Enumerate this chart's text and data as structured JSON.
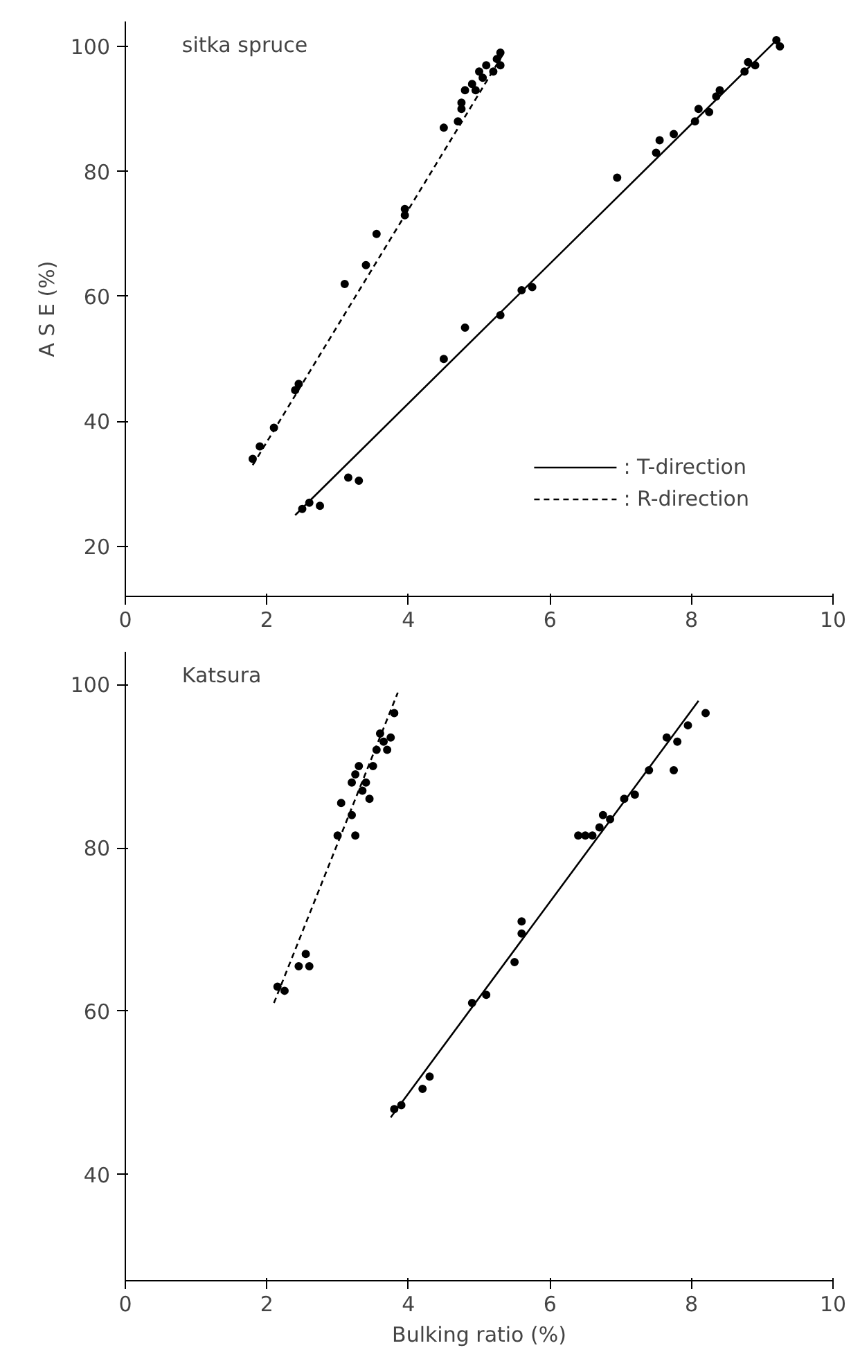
{
  "chart_data": [
    {
      "type": "scatter",
      "title": "sitka spruce",
      "ylabel": "A S E (%)",
      "xlim": [
        0,
        10
      ],
      "ylim": [
        12,
        104
      ],
      "xticks": [
        0,
        2,
        4,
        6,
        8,
        10
      ],
      "yticks": [
        20,
        40,
        60,
        80,
        100
      ],
      "grid": false,
      "legend": "bottom right",
      "marker": "circle",
      "series": [
        {
          "color": "#000000",
          "x": [
            1.8,
            1.9,
            2.1,
            2.4,
            2.45,
            3.1,
            3.4,
            3.55,
            3.95,
            3.95,
            4.5,
            4.7,
            4.75,
            4.75,
            4.8,
            4.9,
            4.95,
            5.0,
            5.05,
            5.1,
            5.2,
            5.25,
            5.3,
            5.3
          ],
          "values": [
            34,
            36,
            39,
            45,
            46,
            62,
            65,
            70,
            73,
            74,
            87,
            88,
            90,
            91,
            93,
            94,
            93,
            96,
            95,
            97,
            96,
            98,
            99,
            97
          ]
        },
        {
          "color": "#000000",
          "x": [
            2.5,
            2.6,
            2.75,
            3.15,
            3.3,
            4.5,
            4.8,
            5.3,
            5.6,
            5.75,
            6.95,
            7.5,
            7.55,
            7.75,
            8.05,
            8.1,
            8.25,
            8.35,
            8.4,
            8.75,
            8.8,
            8.9,
            9.2,
            9.25
          ],
          "values": [
            26,
            27,
            26.5,
            31,
            30.5,
            50,
            55,
            57,
            61,
            61.5,
            79,
            83,
            85,
            86,
            88,
            90,
            89.5,
            92,
            93,
            96,
            97.5,
            97,
            101,
            100
          ]
        },
        {
          "type": "line",
          "name": ": T-direction",
          "color": "#000000",
          "line_style": "solid",
          "marker": "none",
          "x": [
            2.4,
            9.2
          ],
          "values": [
            25,
            101
          ]
        },
        {
          "type": "line",
          "name": ": R-direction",
          "color": "#000000",
          "line_style": "dashed",
          "marker": "none",
          "x": [
            1.8,
            5.35
          ],
          "values": [
            33,
            99
          ]
        }
      ]
    },
    {
      "type": "scatter",
      "title": "Katsura",
      "xlabel": "Bulking ratio (%)",
      "xlim": [
        0,
        10
      ],
      "ylim": [
        27,
        104
      ],
      "xticks": [
        0,
        2,
        4,
        6,
        8,
        10
      ],
      "yticks": [
        40,
        60,
        80,
        100
      ],
      "grid": false,
      "marker": "circle",
      "series": [
        {
          "color": "#000000",
          "x": [
            2.15,
            2.25,
            2.45,
            2.55,
            2.6,
            3.0,
            3.05,
            3.2,
            3.25,
            3.2,
            3.25,
            3.3,
            3.35,
            3.4,
            3.45,
            3.5,
            3.55,
            3.6,
            3.65,
            3.7,
            3.75,
            3.8
          ],
          "values": [
            63,
            62.5,
            65.5,
            67,
            65.5,
            81.5,
            85.5,
            84,
            81.5,
            88,
            89,
            90,
            87,
            88,
            86,
            90,
            92,
            94,
            93,
            92,
            93.5,
            96.5
          ]
        },
        {
          "color": "#000000",
          "x": [
            3.8,
            3.9,
            4.2,
            4.3,
            4.9,
            5.1,
            5.5,
            5.6,
            5.6,
            6.4,
            6.5,
            6.6,
            6.7,
            6.75,
            6.85,
            7.05,
            7.2,
            7.4,
            7.65,
            7.75,
            7.8,
            7.95,
            8.2
          ],
          "values": [
            48,
            48.5,
            50.5,
            52,
            61,
            62,
            66,
            69.5,
            71,
            81.5,
            81.5,
            81.5,
            82.5,
            84,
            83.5,
            86,
            86.5,
            89.5,
            93.5,
            89.5,
            93,
            95,
            96.5
          ]
        },
        {
          "type": "line",
          "color": "#000000",
          "line_style": "solid",
          "marker": "none",
          "x": [
            3.75,
            8.1
          ],
          "values": [
            47,
            98
          ]
        },
        {
          "type": "line",
          "color": "#000000",
          "line_style": "dashed",
          "marker": "none",
          "x": [
            2.1,
            3.85
          ],
          "values": [
            61,
            99
          ]
        }
      ]
    }
  ]
}
